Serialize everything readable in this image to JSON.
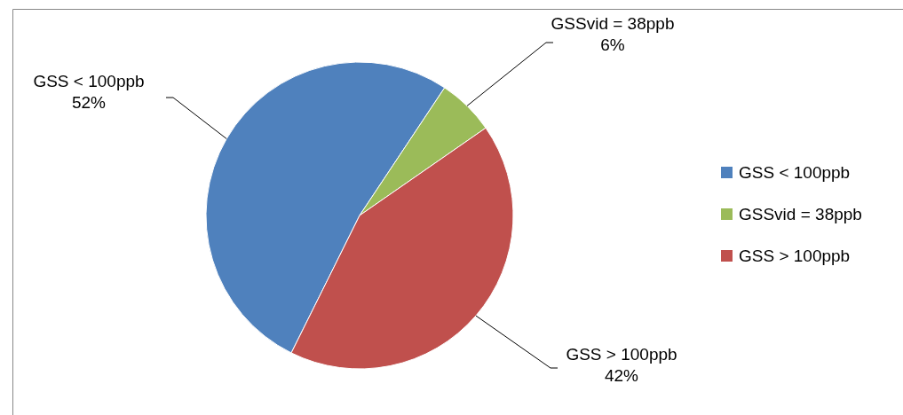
{
  "chart_data": {
    "type": "pie",
    "categories": [
      "GSS < 100ppb",
      "GSSvid = 38ppb",
      "GSS > 100ppb"
    ],
    "values": [
      52,
      6,
      42
    ],
    "colors": [
      "#4f81bd",
      "#9bbb59",
      "#c0504d"
    ],
    "value_labels": [
      "52%",
      "6%",
      "42%"
    ],
    "legend": "right"
  }
}
